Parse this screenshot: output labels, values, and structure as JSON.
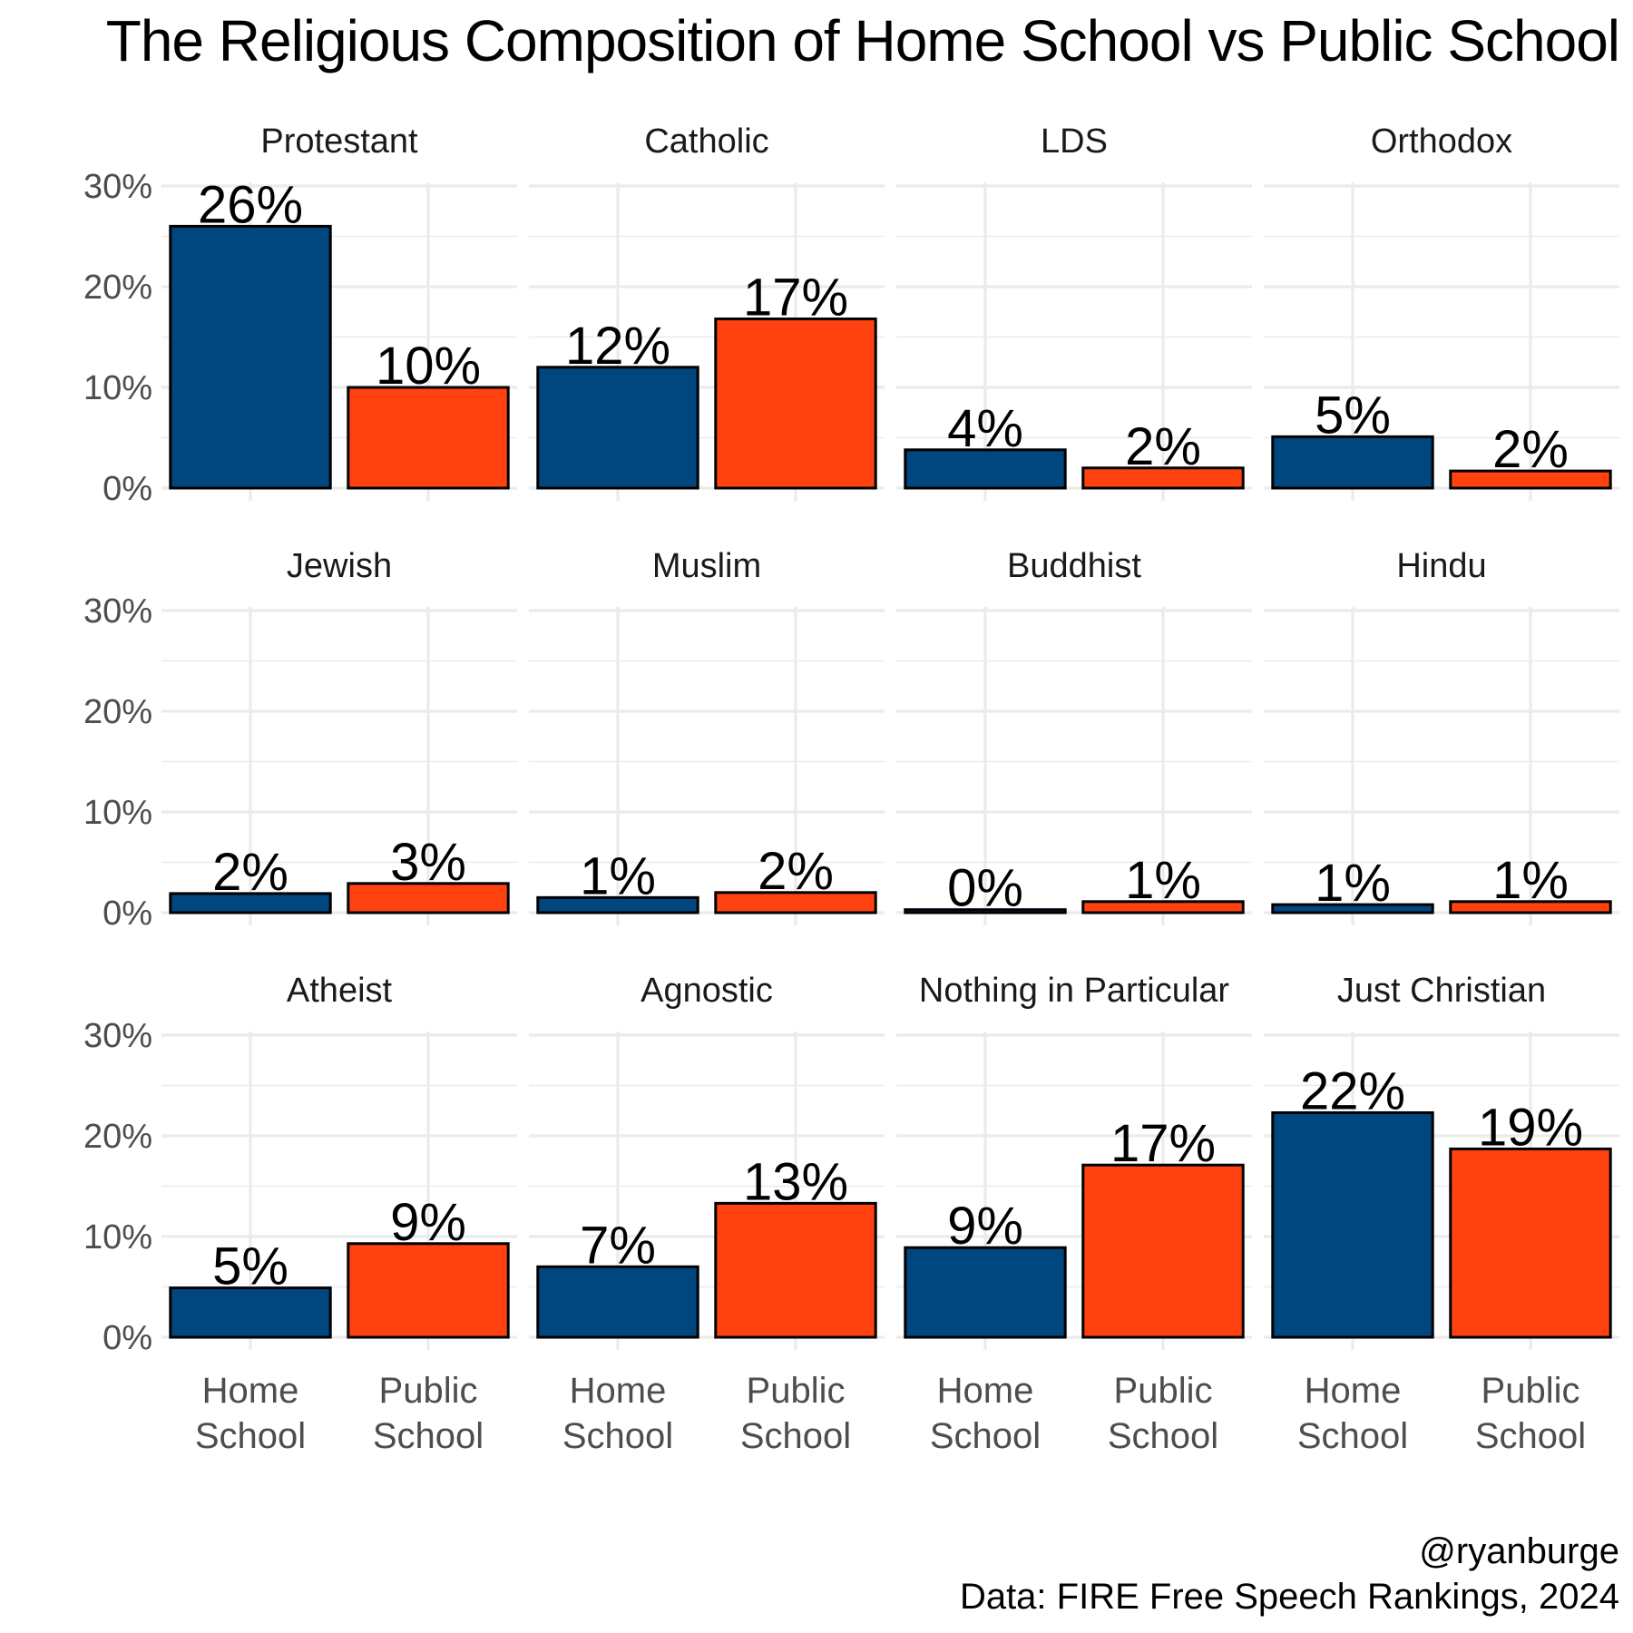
{
  "chart_data": {
    "type": "bar",
    "title": "The Religious Composition of Home School vs Public School",
    "categories": [
      "Home\nSchool",
      "Public\nSchool"
    ],
    "ylim": [
      0,
      30
    ],
    "yticks": [
      "0%",
      "10%",
      "20%",
      "30%"
    ],
    "colors": {
      "Home School": "#00467f",
      "Public School": "#ff4210"
    },
    "grid": true,
    "panels": [
      {
        "name": "Protestant",
        "values": [
          26.0,
          10.0
        ],
        "labels": [
          "26%",
          "10%"
        ]
      },
      {
        "name": "Catholic",
        "values": [
          12.0,
          16.8
        ],
        "labels": [
          "12%",
          "17%"
        ]
      },
      {
        "name": "LDS",
        "values": [
          3.8,
          2.0
        ],
        "labels": [
          "4%",
          "2%"
        ]
      },
      {
        "name": "Orthodox",
        "values": [
          5.1,
          1.7
        ],
        "labels": [
          "5%",
          "2%"
        ]
      },
      {
        "name": "Jewish",
        "values": [
          1.9,
          2.9
        ],
        "labels": [
          "2%",
          "3%"
        ]
      },
      {
        "name": "Muslim",
        "values": [
          1.5,
          2.0
        ],
        "labels": [
          "1%",
          "2%"
        ]
      },
      {
        "name": "Buddhist",
        "values": [
          0.3,
          1.1
        ],
        "labels": [
          "0%",
          "1%"
        ]
      },
      {
        "name": "Hindu",
        "values": [
          0.8,
          1.1
        ],
        "labels": [
          "1%",
          "1%"
        ]
      },
      {
        "name": "Atheist",
        "values": [
          4.9,
          9.3
        ],
        "labels": [
          "5%",
          "9%"
        ]
      },
      {
        "name": "Agnostic",
        "values": [
          7.0,
          13.3
        ],
        "labels": [
          "7%",
          "13%"
        ]
      },
      {
        "name": "Nothing in Particular",
        "values": [
          8.9,
          17.1
        ],
        "labels": [
          "9%",
          "17%"
        ]
      },
      {
        "name": "Just Christian",
        "values": [
          22.3,
          18.7
        ],
        "labels": [
          "22%",
          "19%"
        ]
      }
    ]
  },
  "caption": {
    "handle": "@ryanburge",
    "source": "Data: FIRE Free Speech Rankings, 2024"
  }
}
